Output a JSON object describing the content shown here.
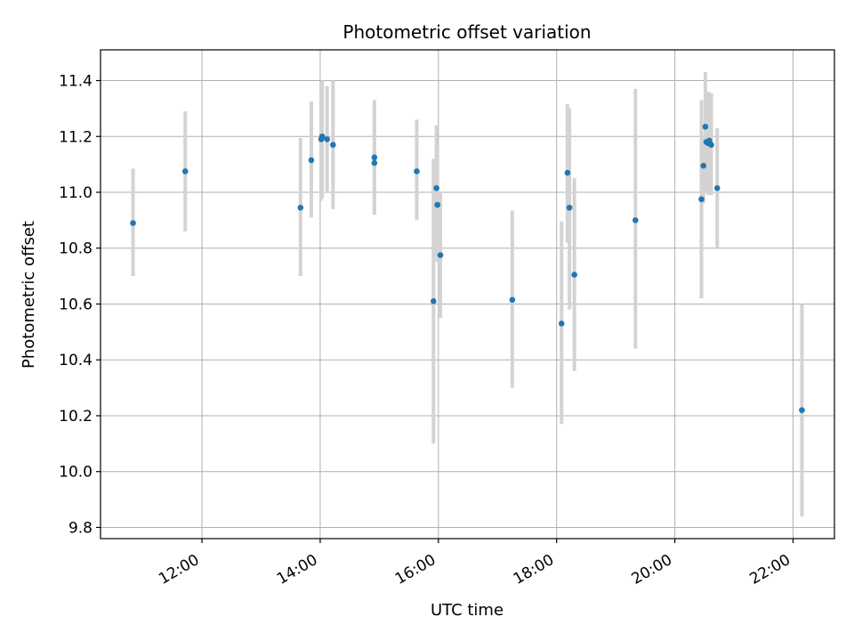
{
  "chart_data": {
    "type": "scatter",
    "title": "Photometric offset variation",
    "xlabel": "UTC time",
    "ylabel": "Photometric offset",
    "x_tick_labels": [
      "12:00",
      "14:00",
      "16:00",
      "18:00",
      "20:00",
      "22:00"
    ],
    "y_tick_labels": [
      "9.8",
      "10.0",
      "10.2",
      "10.4",
      "10.6",
      "10.8",
      "11.0",
      "11.2",
      "11.4"
    ],
    "xlim": [
      "10:17",
      "22:42"
    ],
    "ylim": [
      9.76,
      11.51
    ],
    "grid": true,
    "colors": {
      "marker": "#1f77b4",
      "errorbar": "#d3d3d3",
      "grid": "#b0b0b0"
    },
    "points": [
      {
        "x": "10:50",
        "y": 10.89,
        "ylow": 10.7,
        "yhigh": 11.085
      },
      {
        "x": "11:43",
        "y": 11.075,
        "ylow": 10.86,
        "yhigh": 11.29
      },
      {
        "x": "13:40",
        "y": 10.945,
        "ylow": 10.7,
        "yhigh": 11.195
      },
      {
        "x": "13:51",
        "y": 11.115,
        "ylow": 10.91,
        "yhigh": 11.325
      },
      {
        "x": "14:01",
        "y": 11.19,
        "ylow": 10.97,
        "yhigh": 11.39
      },
      {
        "x": "14:02",
        "y": 11.2,
        "ylow": 10.98,
        "yhigh": 11.4
      },
      {
        "x": "14:07",
        "y": 11.19,
        "ylow": 11.0,
        "yhigh": 11.38
      },
      {
        "x": "14:13",
        "y": 11.17,
        "ylow": 10.94,
        "yhigh": 11.4
      },
      {
        "x": "14:55",
        "y": 11.125,
        "ylow": 10.92,
        "yhigh": 11.33
      },
      {
        "x": "14:55",
        "y": 11.105,
        "ylow": 10.92,
        "yhigh": 11.3
      },
      {
        "x": "15:38",
        "y": 11.075,
        "ylow": 10.9,
        "yhigh": 11.26
      },
      {
        "x": "15:55",
        "y": 10.61,
        "ylow": 10.1,
        "yhigh": 11.12
      },
      {
        "x": "15:58",
        "y": 11.015,
        "ylow": 10.77,
        "yhigh": 11.24
      },
      {
        "x": "15:59",
        "y": 10.955,
        "ylow": 10.75,
        "yhigh": 11.17
      },
      {
        "x": "16:02",
        "y": 10.775,
        "ylow": 10.55,
        "yhigh": 11.0
      },
      {
        "x": "17:15",
        "y": 10.615,
        "ylow": 10.3,
        "yhigh": 10.935
      },
      {
        "x": "18:05",
        "y": 10.53,
        "ylow": 10.17,
        "yhigh": 10.895
      },
      {
        "x": "18:11",
        "y": 11.07,
        "ylow": 10.82,
        "yhigh": 11.315
      },
      {
        "x": "18:13",
        "y": 10.945,
        "ylow": 10.58,
        "yhigh": 11.3
      },
      {
        "x": "18:18",
        "y": 10.705,
        "ylow": 10.36,
        "yhigh": 11.05
      },
      {
        "x": "19:20",
        "y": 10.9,
        "ylow": 10.44,
        "yhigh": 11.37
      },
      {
        "x": "20:27",
        "y": 10.975,
        "ylow": 10.62,
        "yhigh": 11.33
      },
      {
        "x": "20:29",
        "y": 11.095,
        "ylow": 10.96,
        "yhigh": 11.2
      },
      {
        "x": "20:31",
        "y": 11.235,
        "ylow": 11.05,
        "yhigh": 11.43
      },
      {
        "x": "20:32",
        "y": 11.18,
        "ylow": 11.0,
        "yhigh": 11.35
      },
      {
        "x": "20:34",
        "y": 11.175,
        "ylow": 10.99,
        "yhigh": 11.36
      },
      {
        "x": "20:35",
        "y": 11.185,
        "ylow": 11.0,
        "yhigh": 11.35
      },
      {
        "x": "20:37",
        "y": 11.17,
        "ylow": 10.99,
        "yhigh": 11.355
      },
      {
        "x": "20:43",
        "y": 11.015,
        "ylow": 10.8,
        "yhigh": 11.23
      },
      {
        "x": "22:09",
        "y": 10.22,
        "ylow": 9.84,
        "yhigh": 10.6
      }
    ]
  }
}
